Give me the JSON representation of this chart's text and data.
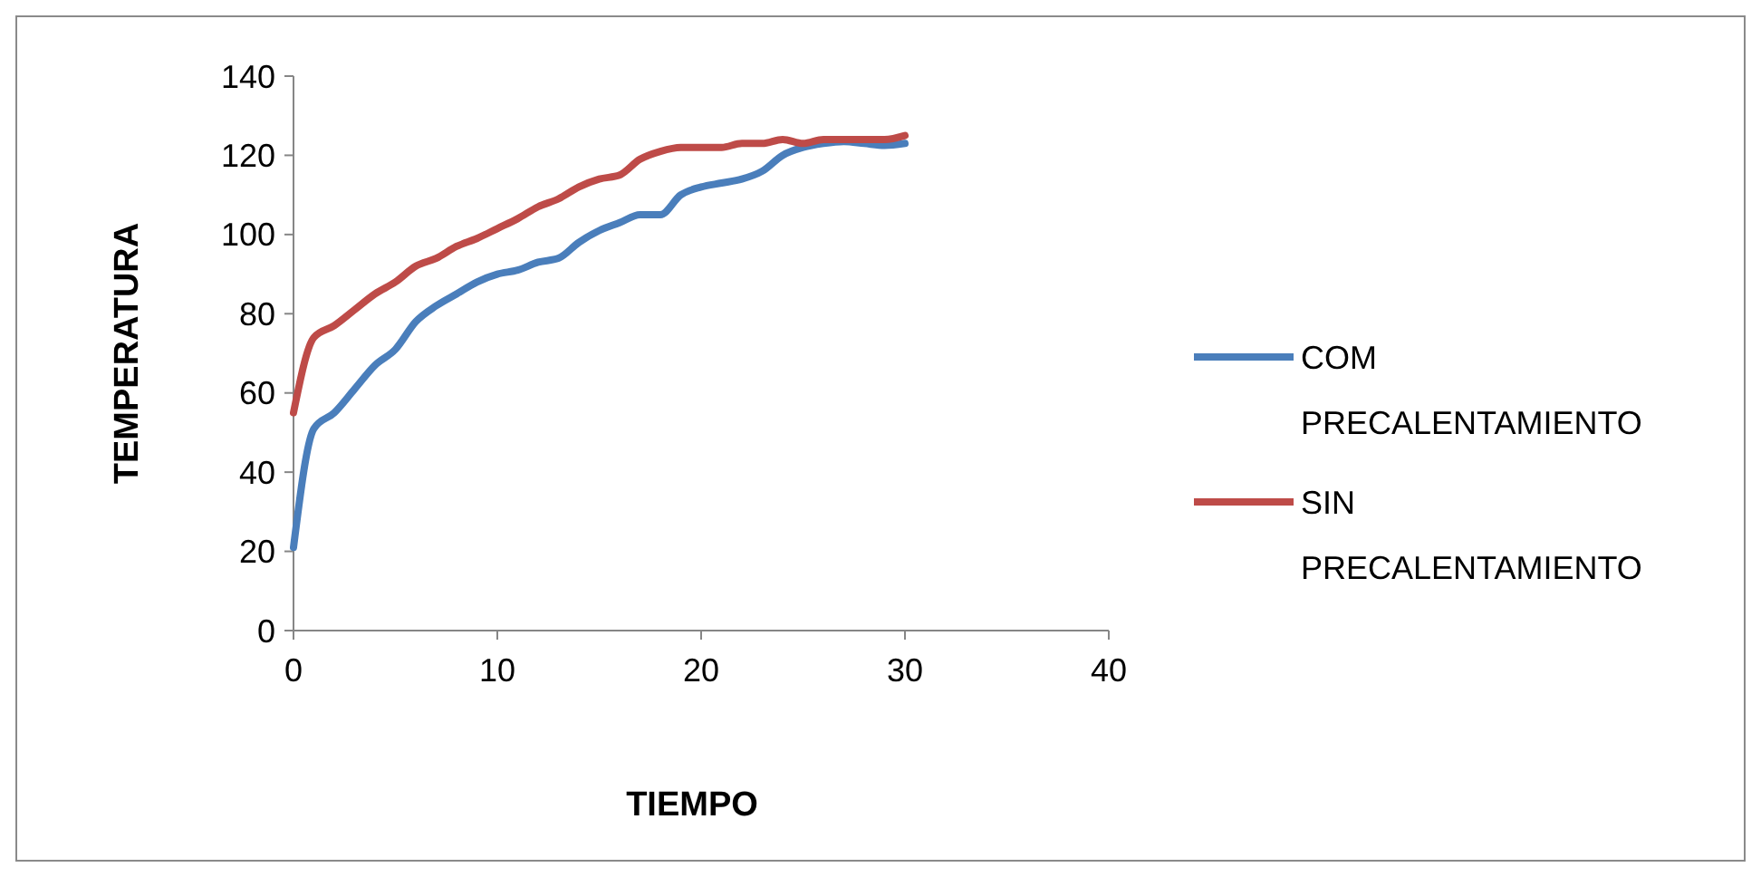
{
  "chart_data": {
    "type": "line",
    "xlabel": "TIEMPO",
    "ylabel": "TEMPERATURA",
    "x": [
      0,
      1,
      2,
      3,
      4,
      5,
      6,
      7,
      8,
      9,
      10,
      11,
      12,
      13,
      14,
      15,
      16,
      17,
      18,
      19,
      20,
      21,
      22,
      23,
      24,
      25,
      26,
      27,
      28,
      29,
      30
    ],
    "series": [
      {
        "name": "COM PRECALENTAMIENTO",
        "color": "#4a7ebb",
        "values": [
          21,
          51,
          55,
          61,
          67,
          71,
          78,
          82,
          85,
          88,
          90,
          91,
          93,
          94,
          98,
          101,
          103,
          105,
          105,
          110,
          112,
          113,
          114,
          116,
          120,
          122,
          123,
          123.5,
          123,
          122.5,
          123
        ]
      },
      {
        "name": "SIN PRECALENTAMIENTO",
        "color": "#be4b48",
        "values": [
          55,
          74,
          77,
          81,
          85,
          88,
          92,
          94,
          97,
          99,
          101.5,
          104,
          107,
          109,
          112,
          114,
          115,
          119,
          121,
          122,
          122,
          122,
          123,
          123,
          124,
          123,
          124,
          124,
          124,
          124,
          125
        ]
      }
    ],
    "xlim": [
      0,
      40
    ],
    "xticks": [
      0,
      10,
      20,
      30,
      40
    ],
    "ylim": [
      0,
      140
    ],
    "yticks": [
      0,
      20,
      40,
      60,
      80,
      100,
      120,
      140
    ],
    "grid": false,
    "legend": "right",
    "line_style": "solid"
  }
}
